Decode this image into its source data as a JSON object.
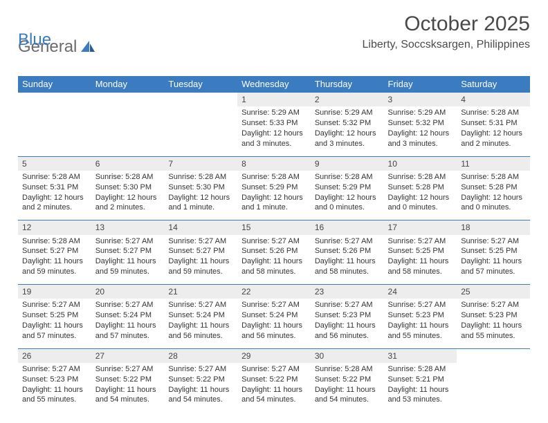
{
  "logo": {
    "text1": "General",
    "text2": "Blue"
  },
  "header": {
    "month_year": "October 2025",
    "location": "Liberty, Soccsksargen, Philippines"
  },
  "colors": {
    "header_bg": "#3b7bbf",
    "header_fg": "#ffffff",
    "daynum_bg": "#ededed",
    "rule": "#3b7bbf",
    "text": "#333333",
    "logo_gray": "#6b6b6b",
    "logo_blue": "#3b7bbf"
  },
  "day_headers": [
    "Sunday",
    "Monday",
    "Tuesday",
    "Wednesday",
    "Thursday",
    "Friday",
    "Saturday"
  ],
  "weeks": [
    [
      {
        "n": "",
        "sr": "",
        "ss": "",
        "dl": ""
      },
      {
        "n": "",
        "sr": "",
        "ss": "",
        "dl": ""
      },
      {
        "n": "",
        "sr": "",
        "ss": "",
        "dl": ""
      },
      {
        "n": "1",
        "sr": "5:29 AM",
        "ss": "5:33 PM",
        "dl": "12 hours and 3 minutes."
      },
      {
        "n": "2",
        "sr": "5:29 AM",
        "ss": "5:32 PM",
        "dl": "12 hours and 3 minutes."
      },
      {
        "n": "3",
        "sr": "5:29 AM",
        "ss": "5:32 PM",
        "dl": "12 hours and 3 minutes."
      },
      {
        "n": "4",
        "sr": "5:28 AM",
        "ss": "5:31 PM",
        "dl": "12 hours and 2 minutes."
      }
    ],
    [
      {
        "n": "5",
        "sr": "5:28 AM",
        "ss": "5:31 PM",
        "dl": "12 hours and 2 minutes."
      },
      {
        "n": "6",
        "sr": "5:28 AM",
        "ss": "5:30 PM",
        "dl": "12 hours and 2 minutes."
      },
      {
        "n": "7",
        "sr": "5:28 AM",
        "ss": "5:30 PM",
        "dl": "12 hours and 1 minute."
      },
      {
        "n": "8",
        "sr": "5:28 AM",
        "ss": "5:29 PM",
        "dl": "12 hours and 1 minute."
      },
      {
        "n": "9",
        "sr": "5:28 AM",
        "ss": "5:29 PM",
        "dl": "12 hours and 0 minutes."
      },
      {
        "n": "10",
        "sr": "5:28 AM",
        "ss": "5:28 PM",
        "dl": "12 hours and 0 minutes."
      },
      {
        "n": "11",
        "sr": "5:28 AM",
        "ss": "5:28 PM",
        "dl": "12 hours and 0 minutes."
      }
    ],
    [
      {
        "n": "12",
        "sr": "5:28 AM",
        "ss": "5:27 PM",
        "dl": "11 hours and 59 minutes."
      },
      {
        "n": "13",
        "sr": "5:27 AM",
        "ss": "5:27 PM",
        "dl": "11 hours and 59 minutes."
      },
      {
        "n": "14",
        "sr": "5:27 AM",
        "ss": "5:27 PM",
        "dl": "11 hours and 59 minutes."
      },
      {
        "n": "15",
        "sr": "5:27 AM",
        "ss": "5:26 PM",
        "dl": "11 hours and 58 minutes."
      },
      {
        "n": "16",
        "sr": "5:27 AM",
        "ss": "5:26 PM",
        "dl": "11 hours and 58 minutes."
      },
      {
        "n": "17",
        "sr": "5:27 AM",
        "ss": "5:25 PM",
        "dl": "11 hours and 58 minutes."
      },
      {
        "n": "18",
        "sr": "5:27 AM",
        "ss": "5:25 PM",
        "dl": "11 hours and 57 minutes."
      }
    ],
    [
      {
        "n": "19",
        "sr": "5:27 AM",
        "ss": "5:25 PM",
        "dl": "11 hours and 57 minutes."
      },
      {
        "n": "20",
        "sr": "5:27 AM",
        "ss": "5:24 PM",
        "dl": "11 hours and 57 minutes."
      },
      {
        "n": "21",
        "sr": "5:27 AM",
        "ss": "5:24 PM",
        "dl": "11 hours and 56 minutes."
      },
      {
        "n": "22",
        "sr": "5:27 AM",
        "ss": "5:24 PM",
        "dl": "11 hours and 56 minutes."
      },
      {
        "n": "23",
        "sr": "5:27 AM",
        "ss": "5:23 PM",
        "dl": "11 hours and 56 minutes."
      },
      {
        "n": "24",
        "sr": "5:27 AM",
        "ss": "5:23 PM",
        "dl": "11 hours and 55 minutes."
      },
      {
        "n": "25",
        "sr": "5:27 AM",
        "ss": "5:23 PM",
        "dl": "11 hours and 55 minutes."
      }
    ],
    [
      {
        "n": "26",
        "sr": "5:27 AM",
        "ss": "5:23 PM",
        "dl": "11 hours and 55 minutes."
      },
      {
        "n": "27",
        "sr": "5:27 AM",
        "ss": "5:22 PM",
        "dl": "11 hours and 54 minutes."
      },
      {
        "n": "28",
        "sr": "5:27 AM",
        "ss": "5:22 PM",
        "dl": "11 hours and 54 minutes."
      },
      {
        "n": "29",
        "sr": "5:27 AM",
        "ss": "5:22 PM",
        "dl": "11 hours and 54 minutes."
      },
      {
        "n": "30",
        "sr": "5:28 AM",
        "ss": "5:22 PM",
        "dl": "11 hours and 54 minutes."
      },
      {
        "n": "31",
        "sr": "5:28 AM",
        "ss": "5:21 PM",
        "dl": "11 hours and 53 minutes."
      },
      {
        "n": "",
        "sr": "",
        "ss": "",
        "dl": ""
      }
    ]
  ],
  "labels": {
    "sunrise": "Sunrise:",
    "sunset": "Sunset:",
    "daylight": "Daylight:"
  }
}
